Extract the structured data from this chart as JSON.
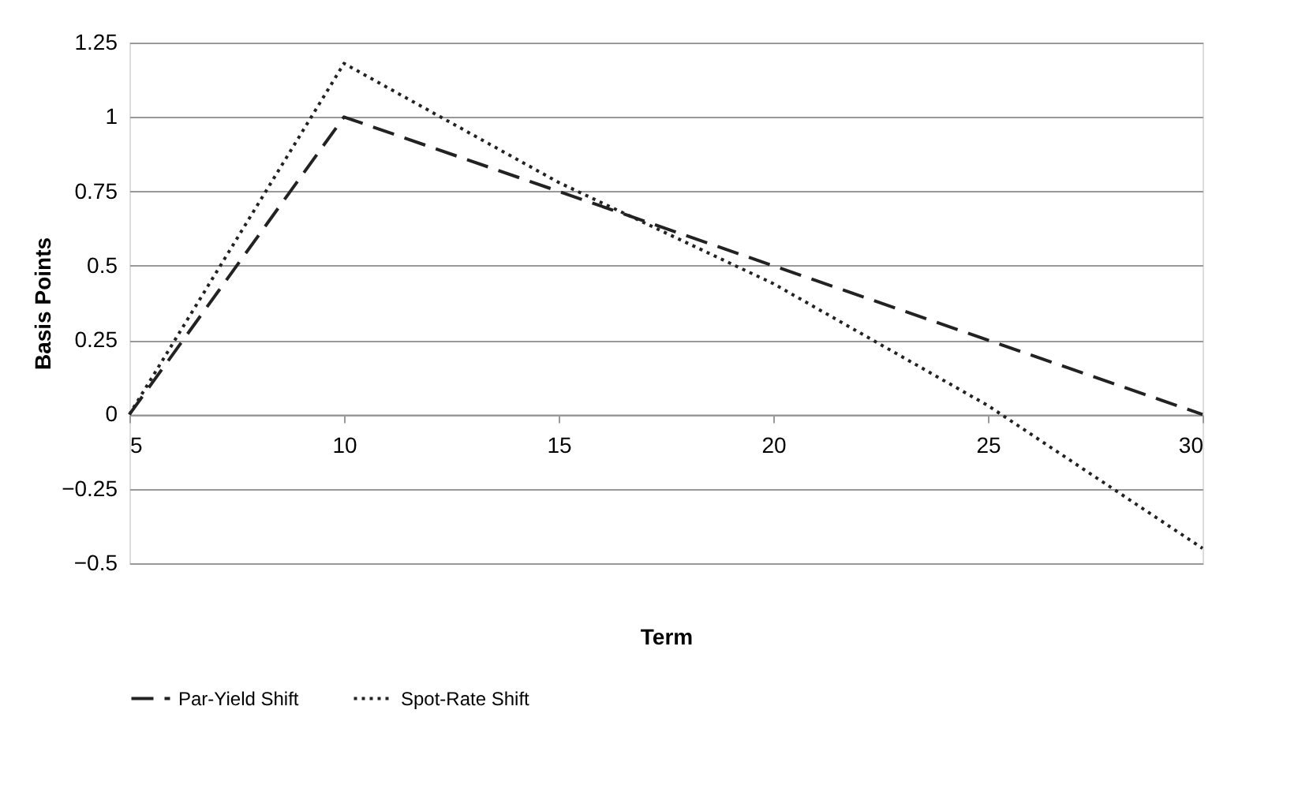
{
  "chart_data": {
    "type": "line",
    "xlabel": "Term",
    "ylabel": "Basis Points",
    "x": [
      5,
      10,
      15,
      20,
      25,
      30
    ],
    "series": [
      {
        "name": "Par-Yield Shift",
        "color": "#222222",
        "line_style": "dashed",
        "values": [
          0,
          1,
          0.75,
          0.5,
          0.25,
          0
        ]
      },
      {
        "name": "Spot-Rate Shift",
        "color": "#222222",
        "line_style": "dotted",
        "values": [
          0,
          1.18,
          0.78,
          0.44,
          0.03,
          -0.45
        ]
      }
    ],
    "xlim": [
      5,
      30
    ],
    "xticks": [
      5,
      10,
      15,
      20,
      25,
      30
    ],
    "ylim": [
      -0.5,
      1.25
    ],
    "yticks": [
      {
        "value": -0.5,
        "label": "−0.5"
      },
      {
        "value": -0.25,
        "label": "−0.25"
      },
      0,
      0.25,
      0.5,
      0.75,
      1,
      1.25
    ],
    "grid": "y",
    "legend": "bottom",
    "marker": "none"
  }
}
